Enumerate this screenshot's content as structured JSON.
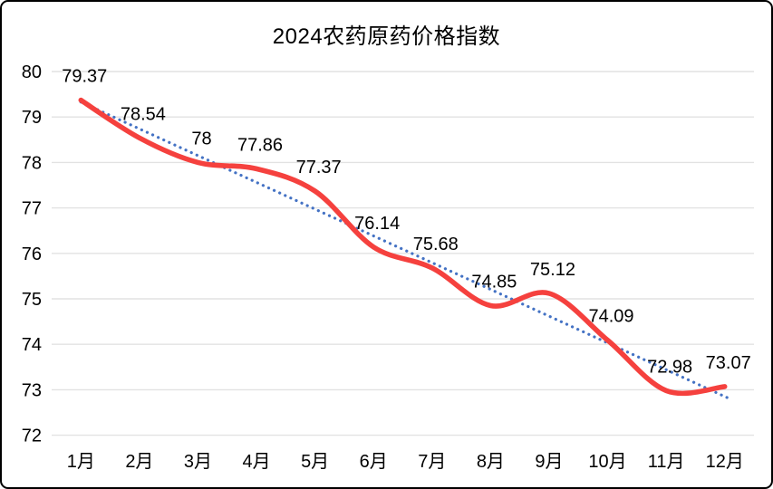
{
  "frame": {
    "background": "#FFFFFF",
    "border_color": "#000000"
  },
  "chart_data": {
    "type": "line",
    "title": "2024农药原药价格指数",
    "categories": [
      "1月",
      "2月",
      "3月",
      "4月",
      "5月",
      "6月",
      "7月",
      "8月",
      "9月",
      "10月",
      "11月",
      "12月"
    ],
    "series": [
      {
        "values": [
          79.37,
          78.54,
          78,
          77.86,
          77.37,
          76.14,
          75.68,
          74.85,
          75.12,
          74.09,
          72.98,
          73.07
        ],
        "labels": [
          "79.37",
          "78.54",
          "78",
          "77.86",
          "77.37",
          "76.14",
          "75.68",
          "74.85",
          "75.12",
          "74.09",
          "72.98",
          "73.07"
        ],
        "color": "#F5413E",
        "line_style": "smooth",
        "markers": "none"
      }
    ],
    "trendline": {
      "type": "linear",
      "style": "round-dot",
      "color": "#4472C4"
    },
    "xlabel": "",
    "ylabel": "",
    "ylim": [
      72,
      80
    ],
    "yticks": [
      80,
      79,
      78,
      77,
      76,
      75,
      74,
      73,
      72
    ],
    "grid": "horizontal",
    "gridline_color": "#E2E2E2",
    "legend": "none",
    "text_color": "#000000"
  }
}
